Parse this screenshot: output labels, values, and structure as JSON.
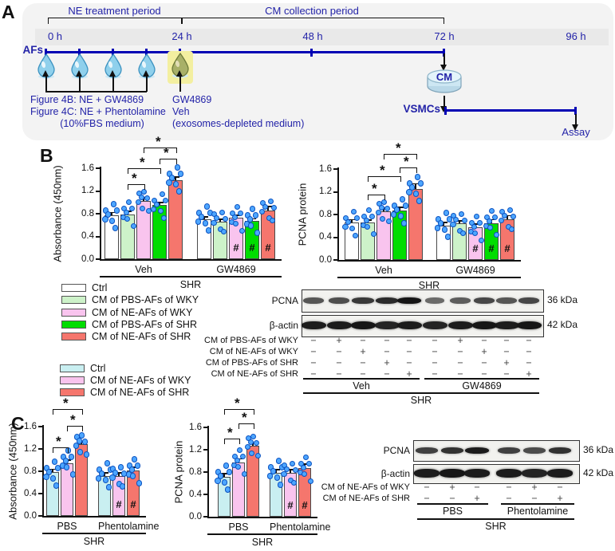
{
  "panel_labels": {
    "a": "A",
    "b": "B",
    "c": "C"
  },
  "marks": {
    "sig": "*",
    "hash": "#"
  },
  "colors": {
    "navy_text": "#2323a8",
    "timeline_blue": "#0000b4",
    "ctrl_white": "#ffffff",
    "ctrl_cyan": "#c9eff1",
    "pbs_wky_green": "#cdf2c9",
    "ne_wky_pink": "#f9c4ee",
    "pbs_shr_green": "#00dd00",
    "ne_shr_red": "#f5766d",
    "dot_blue": "#4da6ff",
    "panel_bg": "#f3f3f3"
  },
  "panel_a": {
    "label": "A",
    "period1": "NE treatment period",
    "period2": "CM collection period",
    "times": [
      "0 h",
      "24 h",
      "48 h",
      "72 h",
      "96 h"
    ],
    "afs": "AFs",
    "notes_left": [
      "Figure 4B: NE + GW4869",
      "Figure 4C: NE + Phentolamine",
      "(10%FBS medium)"
    ],
    "notes_mid": [
      "GW4869",
      "Veh",
      "(exosomes-depleted medium)"
    ],
    "cm": "CM",
    "vsmcs": "VSMCs",
    "assay": "Assay",
    "droplet_count_plain": 4,
    "droplet_count_highlighted": 1
  },
  "legend_b": {
    "items": [
      {
        "label": "Ctrl",
        "color": "#ffffff"
      },
      {
        "label": "CM of PBS-AFs of WKY",
        "color": "#cdf2c9"
      },
      {
        "label": "CM of NE-AFs of WKY",
        "color": "#f9c4ee"
      },
      {
        "label": "CM of PBS-AFs of SHR",
        "color": "#00dd00"
      },
      {
        "label": "CM of NE-AFs of SHR",
        "color": "#f5766d"
      }
    ]
  },
  "legend_c": {
    "items": [
      {
        "label": "Ctrl",
        "color": "#c9eff1"
      },
      {
        "label": "CM of NE-AFs of WKY",
        "color": "#f9c4ee"
      },
      {
        "label": "CM of NE-AFs of SHR",
        "color": "#f5766d"
      }
    ]
  },
  "chart_data": [
    {
      "id": "b_absorbance",
      "type": "bar",
      "ylabel": "Absorbance (450nm)",
      "ylim": [
        0,
        1.6
      ],
      "yticks": [
        "0.0",
        "0.4",
        "0.8",
        "1.2",
        "1.6"
      ],
      "series": [
        "Ctrl",
        "CM of PBS-AFs of WKY",
        "CM of NE-AFs of WKY",
        "CM of PBS-AFs of SHR",
        "CM of NE-AFs of SHR"
      ],
      "series_colors": [
        "#ffffff",
        "#cdf2c9",
        "#f9c4ee",
        "#00dd00",
        "#f5766d"
      ],
      "points_per_bar": 7,
      "groups": [
        {
          "label": "Veh",
          "values": [
            0.78,
            0.79,
            1.03,
            0.96,
            1.4
          ],
          "errors": [
            0.04,
            0.05,
            0.06,
            0.04,
            0.05
          ],
          "hash": []
        },
        {
          "label": "GW4869",
          "values": [
            0.71,
            0.66,
            0.73,
            0.67,
            0.86
          ],
          "errors": [
            0.03,
            0.04,
            0.04,
            0.04,
            0.07
          ],
          "hash": [
            2,
            3,
            4
          ]
        }
      ],
      "group_axis_label": "SHR",
      "brackets": [
        {
          "group": 0,
          "from": 1,
          "to": 2,
          "level": 1.33,
          "mark": "*"
        },
        {
          "group": 0,
          "from": 1,
          "to": 3,
          "level": 1.6,
          "mark": "*"
        },
        {
          "group": 0,
          "from": 3,
          "to": 4,
          "level": 1.77,
          "mark": "*"
        },
        {
          "group": 0,
          "from": 2,
          "to": 4,
          "level": 1.97,
          "mark": "*"
        }
      ]
    },
    {
      "id": "b_pcna",
      "type": "bar",
      "ylabel": "PCNA protein",
      "ylim": [
        0,
        1.6
      ],
      "yticks": [
        "0.0",
        "0.4",
        "0.8",
        "1.2",
        "1.6"
      ],
      "series": [
        "Ctrl",
        "CM of PBS-AFs of WKY",
        "CM of NE-AFs of WKY",
        "CM of PBS-AFs of SHR",
        "CM of NE-AFs of SHR"
      ],
      "series_colors": [
        "#ffffff",
        "#cdf2c9",
        "#f9c4ee",
        "#00dd00",
        "#f5766d"
      ],
      "points_per_bar": 7,
      "groups": [
        {
          "label": "Veh",
          "values": [
            0.66,
            0.66,
            0.86,
            0.88,
            1.25
          ],
          "errors": [
            0.05,
            0.04,
            0.05,
            0.05,
            0.09
          ],
          "hash": []
        },
        {
          "label": "GW4869",
          "values": [
            0.61,
            0.65,
            0.58,
            0.65,
            0.72
          ],
          "errors": [
            0.05,
            0.04,
            0.05,
            0.06,
            0.06
          ],
          "hash": [
            2,
            3,
            4
          ]
        }
      ],
      "group_axis_label": "SHR",
      "brackets": [
        {
          "group": 0,
          "from": 1,
          "to": 2,
          "level": 1.15,
          "mark": "*"
        },
        {
          "group": 0,
          "from": 1,
          "to": 3,
          "level": 1.48,
          "mark": "*"
        },
        {
          "group": 0,
          "from": 3,
          "to": 4,
          "level": 1.64,
          "mark": "*"
        },
        {
          "group": 0,
          "from": 2,
          "to": 4,
          "level": 1.88,
          "mark": "*"
        }
      ]
    },
    {
      "id": "c_absorbance",
      "type": "bar",
      "ylabel": "Absorbance (450nm)",
      "ylim": [
        0,
        1.6
      ],
      "yticks": [
        "0.0",
        "0.4",
        "0.8",
        "1.2",
        "1.6"
      ],
      "series": [
        "Ctrl",
        "CM of NE-AFs of WKY",
        "CM of NE-AFs of SHR"
      ],
      "series_colors": [
        "#c9eff1",
        "#f9c4ee",
        "#f5766d"
      ],
      "points_per_bar": 7,
      "groups": [
        {
          "label": "PBS",
          "values": [
            0.78,
            0.95,
            1.28
          ],
          "errors": [
            0.05,
            0.05,
            0.05
          ],
          "hash": []
        },
        {
          "label": "Phentolamine",
          "values": [
            0.72,
            0.71,
            0.82
          ],
          "errors": [
            0.05,
            0.06,
            0.05
          ],
          "hash": [
            1,
            2
          ]
        }
      ],
      "group_axis_label": "SHR",
      "brackets": [
        {
          "group": 0,
          "from": 0,
          "to": 1,
          "level": 1.23,
          "mark": "*"
        },
        {
          "group": 0,
          "from": 1,
          "to": 2,
          "level": 1.61,
          "mark": "*"
        },
        {
          "group": 0,
          "from": 0,
          "to": 2,
          "level": 1.91,
          "mark": "*"
        }
      ]
    },
    {
      "id": "c_pcna",
      "type": "bar",
      "ylabel": "PCNA protein",
      "ylim": [
        0,
        1.6
      ],
      "yticks": [
        "0.0",
        "0.4",
        "0.8",
        "1.2",
        "1.6"
      ],
      "series": [
        "Ctrl",
        "CM of NE-AFs of WKY",
        "CM of NE-AFs of SHR"
      ],
      "series_colors": [
        "#c9eff1",
        "#f9c4ee",
        "#f5766d"
      ],
      "points_per_bar": 7,
      "groups": [
        {
          "label": "PBS",
          "values": [
            0.72,
            0.97,
            1.27
          ],
          "errors": [
            0.05,
            0.06,
            0.05
          ],
          "hash": []
        },
        {
          "label": "Phentolamine",
          "values": [
            0.78,
            0.79,
            0.87
          ],
          "errors": [
            0.06,
            0.05,
            0.07
          ],
          "hash": [
            1,
            2
          ]
        }
      ],
      "group_axis_label": "SHR",
      "brackets": [
        {
          "group": 0,
          "from": 0,
          "to": 1,
          "level": 1.4,
          "mark": "*"
        },
        {
          "group": 0,
          "from": 1,
          "to": 2,
          "level": 1.67,
          "mark": "*"
        },
        {
          "group": 0,
          "from": 0,
          "to": 2,
          "level": 1.93,
          "mark": "*"
        }
      ]
    }
  ],
  "blot_b": {
    "targets": [
      {
        "name": "PCNA",
        "kda": "36 kDa",
        "bands": [
          0.55,
          0.6,
          0.75,
          0.85,
          1.0,
          0.4,
          0.5,
          0.65,
          0.55,
          0.65
        ]
      },
      {
        "name": "β-actin",
        "kda": "42 kDa",
        "bands": [
          0.95,
          0.95,
          1.0,
          0.9,
          0.95,
          0.9,
          0.95,
          1.0,
          0.95,
          1.0
        ]
      }
    ],
    "condition_rows": [
      {
        "label": "CM of PBS-AFs of WKY",
        "signs": [
          "−",
          "+",
          "−",
          "−",
          "−",
          "−",
          "+",
          "−",
          "−",
          "−"
        ]
      },
      {
        "label": "CM of NE-AFs of WKY",
        "signs": [
          "−",
          "−",
          "+",
          "−",
          "−",
          "−",
          "−",
          "+",
          "−",
          "−"
        ]
      },
      {
        "label": "CM of PBS-AFs of SHR",
        "signs": [
          "−",
          "−",
          "−",
          "+",
          "−",
          "−",
          "−",
          "−",
          "+",
          "−"
        ]
      },
      {
        "label": "CM of NE-AFs of SHR",
        "signs": [
          "−",
          "−",
          "−",
          "−",
          "+",
          "−",
          "−",
          "−",
          "−",
          "+"
        ]
      }
    ],
    "groups": [
      "Veh",
      "GW4869"
    ],
    "strain": "SHR"
  },
  "blot_c": {
    "targets": [
      {
        "name": "PCNA",
        "kda": "36 kDa",
        "bands": [
          0.7,
          0.8,
          0.95,
          0.7,
          0.62,
          0.8
        ]
      },
      {
        "name": "β-actin",
        "kda": "42 kDa",
        "bands": [
          0.95,
          1.0,
          0.95,
          0.95,
          0.9,
          0.95
        ]
      }
    ],
    "condition_rows": [
      {
        "label": "CM of NE-AFs of WKY",
        "signs": [
          "−",
          "+",
          "−",
          "−",
          "+",
          "−"
        ]
      },
      {
        "label": "CM of NE-AFs of SHR",
        "signs": [
          "−",
          "−",
          "+",
          "−",
          "−",
          "+"
        ]
      }
    ],
    "groups": [
      "PBS",
      "Phentolamine"
    ],
    "strain": "SHR"
  }
}
